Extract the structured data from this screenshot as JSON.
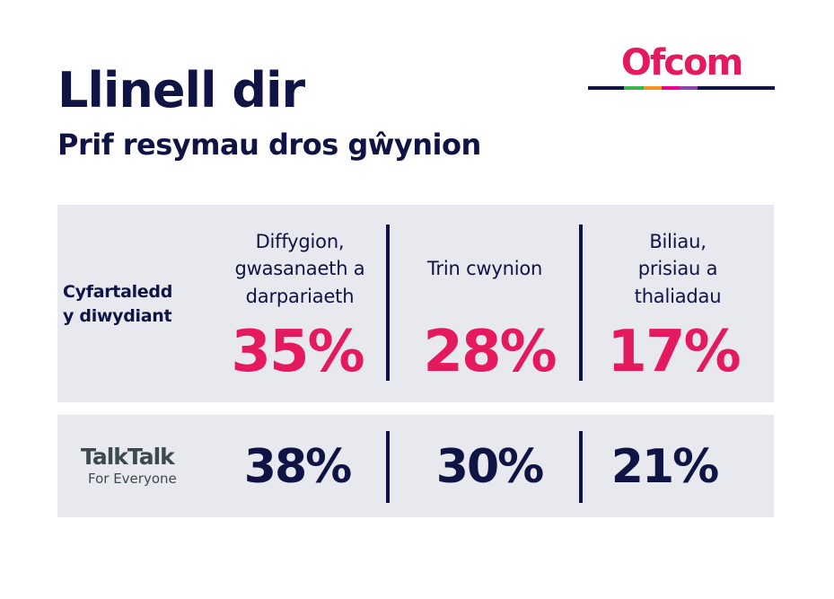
{
  "title": "Llinell dir",
  "subtitle": "Prif resymau dros gŵynion",
  "logo": {
    "text": "Ofcom",
    "color": "#e5195e",
    "bar_colors": [
      "#0f1445",
      "#39b54a",
      "#f7941d",
      "#ec008c",
      "#8e44ad",
      "#0f1445"
    ]
  },
  "industry": {
    "label_line1": "Cyfartaledd",
    "label_line2": "y diwydiant"
  },
  "columns": [
    {
      "head_lines": [
        "Diffygion,",
        "gwasanaeth a",
        "darpariaeth"
      ],
      "industry_pct": "35%",
      "talktalk_pct": "38%"
    },
    {
      "head_lines": [
        "Trin cwynion"
      ],
      "industry_pct": "28%",
      "talktalk_pct": "30%"
    },
    {
      "head_lines": [
        "Biliau,",
        "prisiau a",
        "thaliadau"
      ],
      "industry_pct": "17%",
      "talktalk_pct": "21%"
    }
  ],
  "talktalk": {
    "brand": "TalkTalk",
    "tagline": "For Everyone"
  },
  "colors": {
    "navy": "#0f1445",
    "accent": "#e5195e",
    "panel": "#e8e9ef"
  }
}
